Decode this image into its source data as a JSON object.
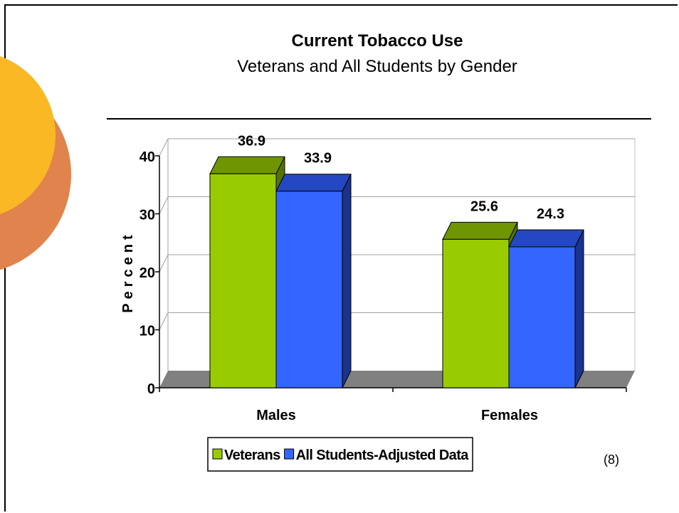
{
  "slide": {
    "title": "Current Tobacco Use",
    "subtitle": "Veterans and All Students by Gender",
    "footnote": "(8)"
  },
  "colors": {
    "veterans": "#99cc00",
    "veterans_top": "#6f9500",
    "veterans_side": "#557300",
    "all_students": "#3366ff",
    "all_students_top": "#2447c2",
    "all_students_side": "#1a338c",
    "floor": "#808080",
    "decor_yellow": "#f9b824",
    "decor_orange": "#e0834c"
  },
  "chart_data": {
    "type": "bar",
    "categories": [
      "Males",
      "Females"
    ],
    "series": [
      {
        "name": "Veterans",
        "values": [
          36.9,
          25.6
        ]
      },
      {
        "name": "All Students-Adjusted Data",
        "values": [
          33.9,
          24.3
        ]
      }
    ],
    "ylabel": "Percent",
    "ylim": [
      0,
      40
    ],
    "yticks": [
      0,
      10,
      20,
      30,
      40
    ],
    "grid": true,
    "legend_position": "bottom"
  }
}
